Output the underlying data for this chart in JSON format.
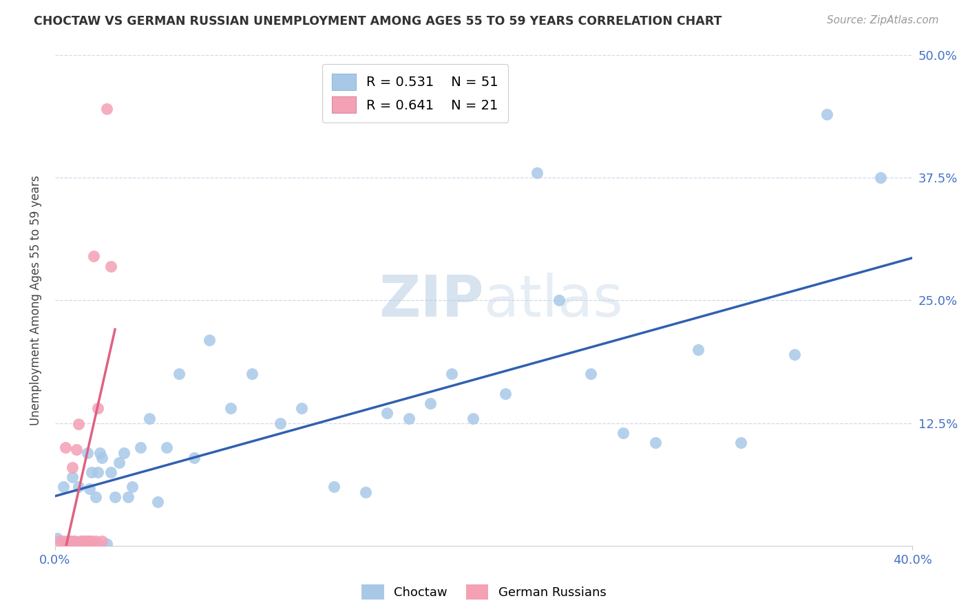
{
  "title": "CHOCTAW VS GERMAN RUSSIAN UNEMPLOYMENT AMONG AGES 55 TO 59 YEARS CORRELATION CHART",
  "source": "Source: ZipAtlas.com",
  "ylabel": "Unemployment Among Ages 55 to 59 years",
  "xlim": [
    0.0,
    0.4
  ],
  "ylim": [
    0.0,
    0.5
  ],
  "xticks": [
    0.0,
    0.4
  ],
  "xticklabels": [
    "0.0%",
    "40.0%"
  ],
  "yticks_left": [],
  "yticks_right": [
    0.0,
    0.125,
    0.25,
    0.375,
    0.5
  ],
  "yticklabels_right": [
    "",
    "12.5%",
    "25.0%",
    "37.5%",
    "50.0%"
  ],
  "choctaw_R": 0.531,
  "choctaw_N": 51,
  "german_R": 0.641,
  "german_N": 21,
  "choctaw_color": "#a8c8e8",
  "german_color": "#f4a0b5",
  "choctaw_line_color": "#3060b0",
  "german_line_color": "#e06080",
  "watermark_part1": "ZIP",
  "watermark_part2": "atlas",
  "choctaw_x": [
    0.001,
    0.004,
    0.006,
    0.008,
    0.009,
    0.011,
    0.013,
    0.015,
    0.016,
    0.017,
    0.018,
    0.019,
    0.02,
    0.021,
    0.022,
    0.024,
    0.026,
    0.028,
    0.03,
    0.032,
    0.034,
    0.036,
    0.04,
    0.044,
    0.048,
    0.052,
    0.058,
    0.065,
    0.072,
    0.082,
    0.092,
    0.105,
    0.115,
    0.13,
    0.145,
    0.155,
    0.165,
    0.175,
    0.185,
    0.195,
    0.21,
    0.225,
    0.235,
    0.25,
    0.265,
    0.28,
    0.3,
    0.32,
    0.345,
    0.36,
    0.385
  ],
  "choctaw_y": [
    0.008,
    0.06,
    0.005,
    0.07,
    0.005,
    0.06,
    0.005,
    0.095,
    0.058,
    0.075,
    0.002,
    0.05,
    0.075,
    0.095,
    0.09,
    0.002,
    0.075,
    0.05,
    0.085,
    0.095,
    0.05,
    0.06,
    0.1,
    0.13,
    0.045,
    0.1,
    0.175,
    0.09,
    0.21,
    0.14,
    0.175,
    0.125,
    0.14,
    0.06,
    0.055,
    0.135,
    0.13,
    0.145,
    0.175,
    0.13,
    0.155,
    0.38,
    0.25,
    0.175,
    0.115,
    0.105,
    0.2,
    0.105,
    0.195,
    0.44,
    0.375
  ],
  "german_x": [
    0.002,
    0.004,
    0.005,
    0.006,
    0.007,
    0.008,
    0.009,
    0.01,
    0.011,
    0.012,
    0.013,
    0.014,
    0.015,
    0.016,
    0.017,
    0.018,
    0.019,
    0.02,
    0.022,
    0.024,
    0.026
  ],
  "german_y": [
    0.005,
    0.005,
    0.1,
    0.005,
    0.005,
    0.08,
    0.005,
    0.098,
    0.124,
    0.005,
    0.005,
    0.005,
    0.005,
    0.005,
    0.005,
    0.295,
    0.005,
    0.14,
    0.005,
    0.445,
    0.285
  ],
  "grid_color": "#d0d8e8",
  "grid_yticks": [
    0.125,
    0.25,
    0.375,
    0.5
  ]
}
